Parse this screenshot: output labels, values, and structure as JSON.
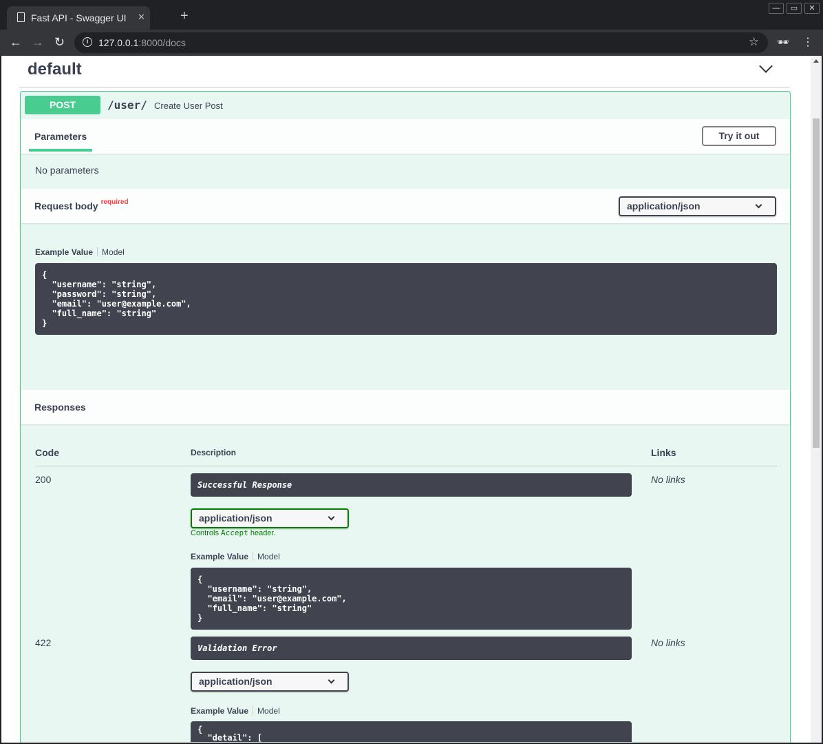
{
  "browser": {
    "tab_title": "Fast API - Swagger UI",
    "url_host": "127.0.0.1",
    "url_rest": ":8000/docs",
    "info_glyph": "i"
  },
  "section": {
    "title": "default"
  },
  "operation": {
    "method": "POST",
    "path": "/user/",
    "summary": "Create User Post",
    "method_color": "#49cc90"
  },
  "parameters": {
    "tab": "Parameters",
    "try_label": "Try it out",
    "none": "No parameters"
  },
  "request_body": {
    "label": "Request body",
    "required": "required",
    "content_type": "application/json",
    "example_tab": "Example Value",
    "model_tab": "Model",
    "example": "{\n  \"username\": \"string\",\n  \"password\": \"string\",\n  \"email\": \"user@example.com\",\n  \"full_name\": \"string\"\n}"
  },
  "responses": {
    "title": "Responses",
    "headers": {
      "code": "Code",
      "description": "Description",
      "links": "Links"
    },
    "rows": [
      {
        "code": "200",
        "description": "Successful Response",
        "content_type": "application/json",
        "accept_note_pre": "Controls ",
        "accept_note_code": "Accept",
        "accept_note_post": " header.",
        "links": "No links",
        "example_tab": "Example Value",
        "model_tab": "Model",
        "example": "{\n  \"username\": \"string\",\n  \"email\": \"user@example.com\",\n  \"full_name\": \"string\"\n}"
      },
      {
        "code": "422",
        "description": "Validation Error",
        "content_type": "application/json",
        "links": "No links",
        "example_tab": "Example Value",
        "model_tab": "Model",
        "example": "{\n  \"detail\": ["
      }
    ]
  }
}
